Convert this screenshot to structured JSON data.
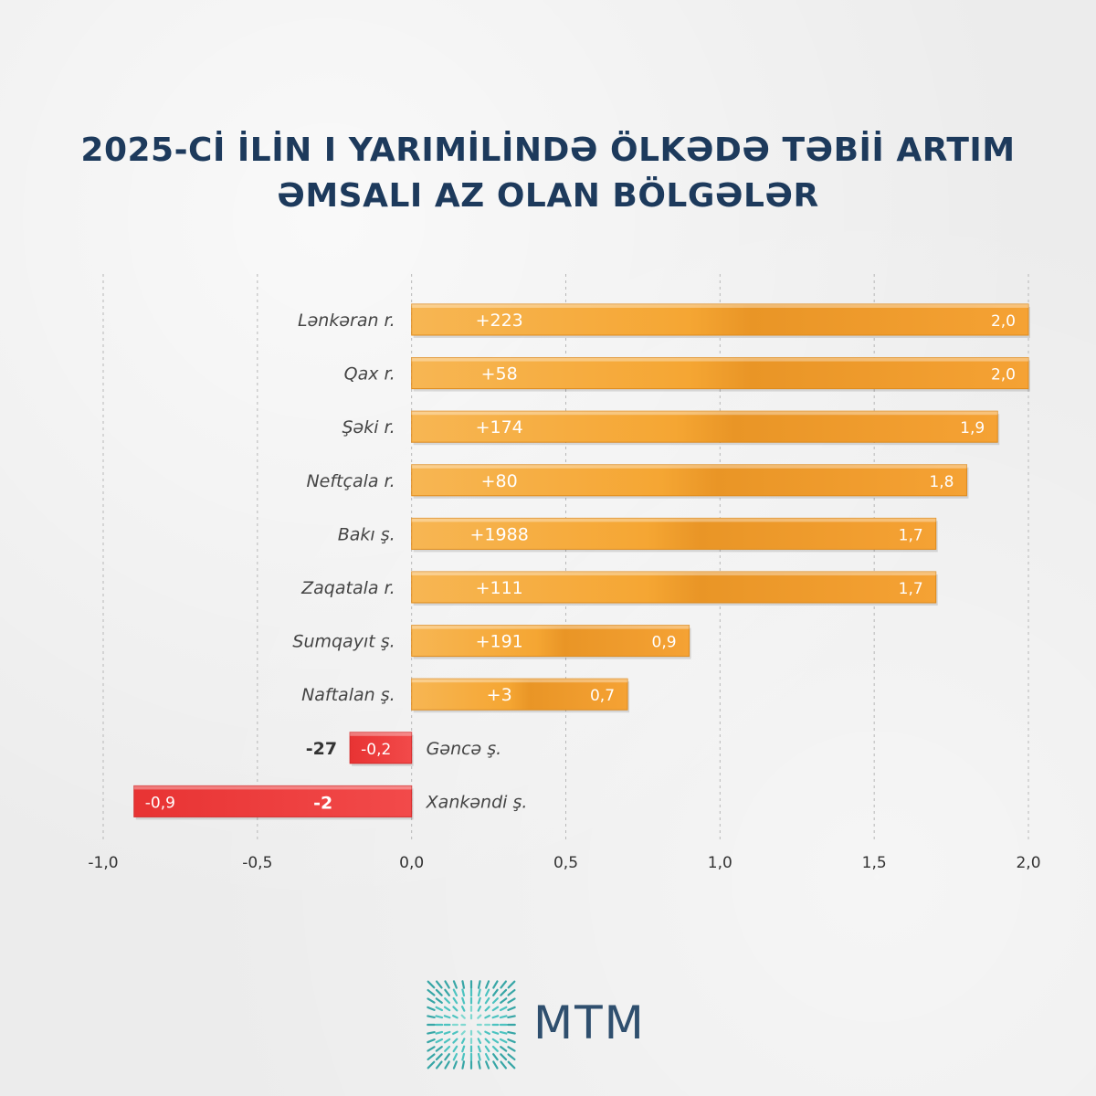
{
  "title_lines": [
    "2025-Cİ İLİN I YARIMİLİNDƏ ÖLKƏDƏ TƏBİİ ARTIM",
    "ƏMSALI AZ OLAN BÖLGƏLƏR"
  ],
  "chart_data": {
    "type": "bar",
    "orientation": "horizontal",
    "categories": [
      "Lənkəran r.",
      "Qax r.",
      "Şəki r.",
      "Neftçala r.",
      "Bakı ş.",
      "Zaqatala r.",
      "Sumqayıt ş.",
      "Naftalan ş.",
      "Gəncə ş.",
      "Xankəndi ş."
    ],
    "values": [
      2.0,
      2.0,
      1.9,
      1.8,
      1.7,
      1.7,
      0.9,
      0.7,
      -0.2,
      -0.9
    ],
    "value_labels": [
      "2,0",
      "2,0",
      "1,9",
      "1,8",
      "1,7",
      "1,7",
      "0,9",
      "0,7",
      "-0,2",
      "-0,9"
    ],
    "increase_labels": [
      "+223",
      "+58",
      "+174",
      "+80",
      "+1988",
      "+111",
      "+191",
      "+3",
      "-27",
      "-2"
    ],
    "xlim": [
      -1.0,
      2.0
    ],
    "xticks": [
      -1.0,
      -0.5,
      0.0,
      0.5,
      1.0,
      1.5,
      2.0
    ],
    "xtick_labels": [
      "-1,0",
      "-0,5",
      "0,0",
      "0,5",
      "1,0",
      "1,5",
      "2,0"
    ],
    "grid": "vertical-dashed",
    "legend": "none",
    "colors": {
      "positive": "#f5a02e",
      "negative": "#ee3a3a",
      "grid": "#b8b8b8",
      "text": "#333333",
      "title": "#1d3a5c"
    }
  },
  "logo_text": "MTM"
}
